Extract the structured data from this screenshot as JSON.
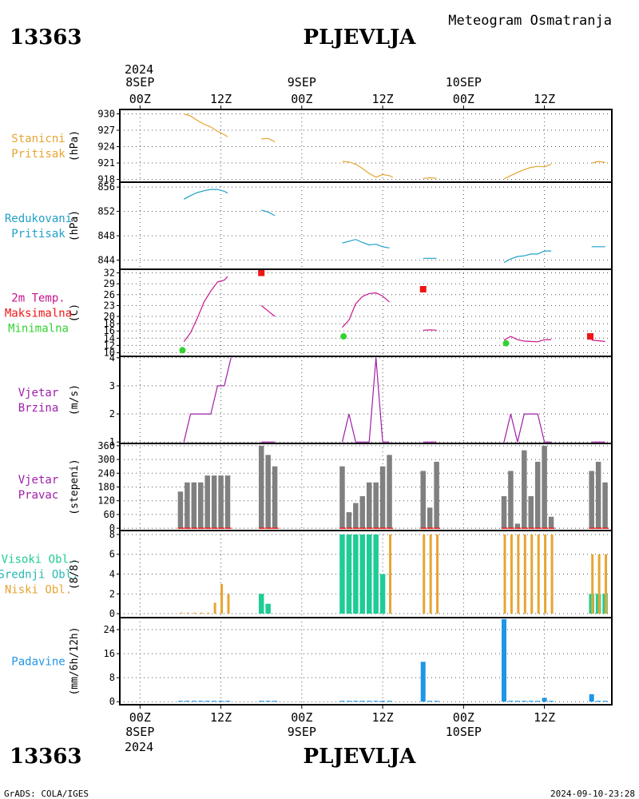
{
  "header": {
    "station_id": "13363",
    "station_name": "PLJEVLJA",
    "subtitle": "Meteogram Osmatranja",
    "footer_left": "GrADS: COLA/IGES",
    "footer_right": "2024-09-10-23:28"
  },
  "time_axis": {
    "year": "2024",
    "top_ticks": [
      {
        "h": 0,
        "line1": "8SEP",
        "line2": "00Z"
      },
      {
        "h": 12,
        "line1": "",
        "line2": "12Z"
      },
      {
        "h": 24,
        "line1": "9SEP",
        "line2": "00Z"
      },
      {
        "h": 36,
        "line1": "",
        "line2": "12Z"
      },
      {
        "h": 48,
        "line1": "10SEP",
        "line2": "00Z"
      },
      {
        "h": 60,
        "line1": "",
        "line2": "12Z"
      }
    ],
    "bottom_ticks": [
      {
        "h": 0,
        "line1": "00Z",
        "line2": "8SEP"
      },
      {
        "h": 12,
        "line1": "12Z",
        "line2": ""
      },
      {
        "h": 24,
        "line1": "00Z",
        "line2": "9SEP"
      },
      {
        "h": 36,
        "line1": "12Z",
        "line2": ""
      },
      {
        "h": 48,
        "line1": "00Z",
        "line2": "10SEP"
      },
      {
        "h": 60,
        "line1": "12Z",
        "line2": ""
      }
    ],
    "range_hours": [
      -3,
      70
    ]
  },
  "colors": {
    "pressure_station": "#e6a532",
    "pressure_reduced": "#1fa0c8",
    "temperature": "#c8148c",
    "tmax": "#f01414",
    "tmin": "#32d232",
    "wind_speed": "#a01eaa",
    "wind_dir": "#808080",
    "wind_dir_base": "#f01414",
    "cloud_high": "#1ecc96",
    "cloud_mid": "#28b8b4",
    "cloud_low": "#e6a532",
    "precip": "#1e96e6",
    "grid": "#555555"
  },
  "chart_data": [
    {
      "id": "station_pressure",
      "type": "line",
      "label_lines": [
        "Stanicni",
        "Pritisak"
      ],
      "unit": "(hPa)",
      "ylim": [
        917.5,
        930.8
      ],
      "yticks": [
        918,
        921,
        924,
        927,
        930
      ],
      "segments": [
        [
          [
            6.5,
            930
          ],
          [
            7.5,
            929.6
          ],
          [
            8.5,
            928.8
          ],
          [
            9.5,
            928.1
          ],
          [
            10.5,
            927.6
          ],
          [
            11.5,
            926.8
          ],
          [
            12.5,
            926.2
          ],
          [
            13,
            925.8
          ]
        ],
        [
          [
            18,
            925.4
          ],
          [
            19,
            925.5
          ],
          [
            20,
            924.9
          ]
        ],
        [
          [
            30,
            921.3
          ],
          [
            31,
            921.2
          ],
          [
            32,
            920.8
          ],
          [
            33,
            920
          ],
          [
            34,
            919.1
          ],
          [
            35,
            918.4
          ],
          [
            36,
            918.9
          ],
          [
            37,
            918.7
          ],
          [
            37.5,
            918.4
          ]
        ],
        [
          [
            42,
            918.2
          ],
          [
            43,
            918.3
          ],
          [
            44,
            918.2
          ]
        ],
        [
          [
            54,
            918.1
          ],
          [
            55,
            918.7
          ],
          [
            56,
            919.3
          ],
          [
            57,
            919.8
          ],
          [
            58,
            920.2
          ],
          [
            59,
            920.4
          ],
          [
            60,
            920.3
          ],
          [
            61,
            920.8
          ]
        ],
        [
          [
            67,
            921
          ],
          [
            68,
            921.3
          ],
          [
            69,
            921.1
          ]
        ]
      ]
    },
    {
      "id": "reduced_pressure",
      "type": "line",
      "label_lines": [
        "Redukovani",
        "Pritisak"
      ],
      "unit": "(hPa)",
      "ylim": [
        842.5,
        856.8
      ],
      "yticks": [
        844,
        848,
        852,
        856
      ],
      "segments": [
        [
          [
            6.5,
            854
          ],
          [
            7.5,
            854.6
          ],
          [
            8.5,
            855.1
          ],
          [
            9.5,
            855.4
          ],
          [
            10.5,
            855.6
          ],
          [
            11.5,
            855.6
          ],
          [
            12.5,
            855.3
          ],
          [
            13,
            855
          ]
        ],
        [
          [
            18,
            852.2
          ],
          [
            19,
            851.9
          ],
          [
            20,
            851.3
          ]
        ],
        [
          [
            30,
            846.8
          ],
          [
            31,
            847.1
          ],
          [
            32,
            847.4
          ],
          [
            33,
            846.9
          ],
          [
            34,
            846.5
          ],
          [
            35,
            846.6
          ],
          [
            36,
            846.2
          ],
          [
            37,
            846
          ]
        ],
        [
          [
            42,
            844.3
          ],
          [
            43,
            844.3
          ],
          [
            44,
            844.3
          ]
        ],
        [
          [
            54,
            843.6
          ],
          [
            55,
            844.2
          ],
          [
            56,
            844.6
          ],
          [
            57,
            844.7
          ],
          [
            58,
            845
          ],
          [
            59,
            845
          ],
          [
            60,
            845.5
          ],
          [
            61,
            845.5
          ]
        ],
        [
          [
            67,
            846.2
          ],
          [
            68,
            846.2
          ],
          [
            69,
            846.2
          ]
        ]
      ]
    },
    {
      "id": "temperature",
      "type": "line",
      "label_lines": [
        "2m Temp.",
        "Maksimalna",
        "Minimalna"
      ],
      "label_colors": [
        "#c8148c",
        "#f01414",
        "#32d232"
      ],
      "unit": "(C)",
      "ylim": [
        9,
        33
      ],
      "yticks": [
        10,
        12,
        14,
        16,
        18,
        20,
        23,
        26,
        29,
        32
      ],
      "ytick_labels": [
        "10",
        "12",
        "14",
        "16",
        "18",
        "20",
        "23",
        "26",
        "29",
        "32"
      ],
      "segments": [
        [
          [
            6.5,
            13
          ],
          [
            7.5,
            15.5
          ],
          [
            8.5,
            19.5
          ],
          [
            9.5,
            24
          ],
          [
            10.5,
            27
          ],
          [
            11.5,
            29.5
          ],
          [
            12.5,
            30
          ],
          [
            13,
            31
          ]
        ],
        [
          [
            18,
            23
          ],
          [
            19,
            21.5
          ],
          [
            20,
            20
          ]
        ],
        [
          [
            30,
            17
          ],
          [
            31,
            19
          ],
          [
            32,
            23.5
          ],
          [
            33,
            25.5
          ],
          [
            34,
            26.3
          ],
          [
            35,
            26.5
          ],
          [
            36,
            25.6
          ],
          [
            37,
            24
          ]
        ],
        [
          [
            42,
            16.2
          ],
          [
            43,
            16.3
          ],
          [
            44,
            16.2
          ]
        ],
        [
          [
            54,
            13.5
          ],
          [
            55,
            14.5
          ],
          [
            56,
            13.6
          ],
          [
            57,
            13.2
          ],
          [
            58,
            13.1
          ],
          [
            59,
            13
          ],
          [
            60,
            13.6
          ],
          [
            61,
            13.6
          ]
        ],
        [
          [
            67,
            13.5
          ],
          [
            68,
            13.3
          ],
          [
            69,
            13.1
          ]
        ]
      ],
      "tmax_points": [
        [
          18,
          32
        ],
        [
          42,
          27.5
        ],
        [
          66.8,
          14.5
        ]
      ],
      "tmin_points": [
        [
          6.3,
          10.7
        ],
        [
          30.2,
          14.5
        ],
        [
          54.3,
          12.6
        ]
      ]
    },
    {
      "id": "wind_speed",
      "type": "line",
      "label_lines": [
        "Vjetar",
        "Brzina"
      ],
      "unit": "(m/s)",
      "ylim": [
        0.95,
        4.05
      ],
      "yticks": [
        1,
        2,
        3,
        4
      ],
      "segments": [
        [
          [
            6.5,
            1
          ],
          [
            7.5,
            2
          ],
          [
            8.5,
            2
          ],
          [
            9.5,
            2
          ],
          [
            10.5,
            2
          ],
          [
            11.5,
            3
          ],
          [
            12.5,
            3
          ],
          [
            13.5,
            4
          ]
        ],
        [
          [
            18,
            1
          ],
          [
            19,
            1
          ],
          [
            20,
            1
          ]
        ],
        [
          [
            30,
            1
          ],
          [
            31,
            2
          ],
          [
            32,
            1
          ],
          [
            33,
            1
          ],
          [
            34,
            1
          ],
          [
            35,
            4
          ],
          [
            36,
            1
          ],
          [
            37,
            1
          ]
        ],
        [
          [
            42,
            1
          ],
          [
            43,
            1
          ],
          [
            44,
            1
          ]
        ],
        [
          [
            54,
            1
          ],
          [
            55,
            2
          ],
          [
            56,
            1
          ],
          [
            57,
            2
          ],
          [
            58,
            2
          ],
          [
            59,
            2
          ],
          [
            60,
            1
          ],
          [
            61,
            1
          ]
        ],
        [
          [
            67,
            1
          ],
          [
            68,
            1
          ],
          [
            69,
            1
          ]
        ]
      ]
    },
    {
      "id": "wind_direction",
      "type": "bar",
      "label_lines": [
        "Vjetar",
        "Pravac"
      ],
      "unit": "(stepeni)",
      "ylim": [
        -10,
        370
      ],
      "yticks": [
        0,
        60,
        120,
        180,
        240,
        300,
        360
      ],
      "x": [
        6,
        7,
        8,
        9,
        10,
        11,
        12,
        13,
        18,
        19,
        20,
        30,
        31,
        32,
        33,
        34,
        35,
        36,
        37,
        42,
        43,
        44,
        54,
        55,
        56,
        57,
        58,
        59,
        60,
        61,
        67,
        68,
        69
      ],
      "values": [
        160,
        200,
        200,
        200,
        230,
        230,
        230,
        230,
        360,
        320,
        270,
        270,
        70,
        110,
        140,
        200,
        200,
        270,
        320,
        250,
        90,
        290,
        140,
        250,
        20,
        340,
        140,
        290,
        360,
        50,
        250,
        290,
        200
      ]
    },
    {
      "id": "clouds",
      "type": "bar",
      "label_lines": [
        "Visoki Obl.",
        "Srednji Obl.",
        "Niski Obl."
      ],
      "label_colors": [
        "#1ecc96",
        "#28b8b4",
        "#e6a532"
      ],
      "unit": "(8/8)",
      "ylim": [
        -0.4,
        8.4
      ],
      "yticks": [
        0,
        2,
        4,
        6,
        8
      ],
      "x": [
        6,
        7,
        8,
        9,
        10,
        11,
        12,
        13,
        18,
        19,
        20,
        30,
        31,
        32,
        33,
        34,
        35,
        36,
        37,
        42,
        43,
        44,
        54,
        55,
        56,
        57,
        58,
        59,
        60,
        61,
        67,
        68,
        69
      ],
      "series": [
        {
          "name": "Visoki Obl.",
          "values": [
            0,
            0,
            0,
            0,
            0,
            0,
            0,
            0,
            2,
            1,
            0,
            8,
            8,
            8,
            8,
            8,
            8,
            4,
            0,
            0,
            0,
            0,
            0,
            0,
            0,
            0,
            0,
            0,
            0,
            0,
            2,
            2,
            2
          ]
        },
        {
          "name": "Srednji Obl.",
          "values": [
            0,
            0,
            0,
            0,
            0,
            0,
            0,
            0,
            0,
            0,
            0,
            0,
            0,
            0,
            0,
            0,
            0,
            0,
            0,
            0,
            0,
            0,
            0,
            0,
            0,
            0,
            0,
            0,
            0,
            0,
            0,
            0,
            0
          ]
        },
        {
          "name": "Niski Obl.",
          "values": [
            0.1,
            0.1,
            0.1,
            0.1,
            0.1,
            1.1,
            3,
            2,
            0,
            0,
            0,
            0,
            0,
            0,
            0,
            0,
            0,
            0,
            8,
            8,
            8,
            8,
            8,
            8,
            8,
            8,
            8,
            8,
            8,
            8,
            6,
            6,
            6
          ]
        }
      ]
    },
    {
      "id": "precipitation",
      "type": "bar",
      "label_lines": [
        "Padavine"
      ],
      "unit": "(mm/6h/12h)",
      "ylim": [
        -1,
        28
      ],
      "yticks": [
        0,
        8,
        16,
        24
      ],
      "x": [
        6,
        7,
        8,
        9,
        10,
        11,
        12,
        13,
        18,
        19,
        20,
        30,
        31,
        32,
        33,
        34,
        35,
        36,
        37,
        42,
        43,
        44,
        54,
        55,
        56,
        57,
        58,
        59,
        60,
        61,
        67,
        68,
        69
      ],
      "values": [
        0.3,
        0.3,
        0.3,
        0.3,
        0.3,
        0.3,
        0.3,
        0.3,
        0.3,
        0.3,
        0.3,
        0.3,
        0.3,
        0.3,
        0.3,
        0.3,
        0.3,
        0.3,
        0.3,
        13.3,
        0.3,
        0.3,
        27.5,
        0.3,
        0.3,
        0.3,
        0.3,
        0.3,
        1.3,
        0.3,
        2.5,
        0.3,
        0.3
      ]
    }
  ]
}
